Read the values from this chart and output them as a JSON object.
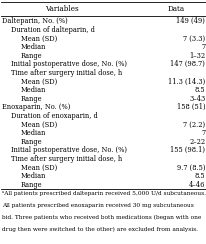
{
  "title": "Variables",
  "col2": "Data",
  "rows": [
    {
      "label": "Dalteparin, No. (%)",
      "value": "149 (49)",
      "indent": 0
    },
    {
      "label": "Duration of dalteparin, d",
      "value": "",
      "indent": 1
    },
    {
      "label": "Mean (SD)",
      "value": "7 (3.3)",
      "indent": 2
    },
    {
      "label": "Median",
      "value": "7",
      "indent": 2
    },
    {
      "label": "Range",
      "value": "1–32",
      "indent": 2
    },
    {
      "label": "Initial postoperative dose, No. (%)",
      "value": "147 (98.7)",
      "indent": 1
    },
    {
      "label": "Time after surgery initial dose, h",
      "value": "",
      "indent": 1
    },
    {
      "label": "Mean (SD)",
      "value": "11.3 (14.3)",
      "indent": 2
    },
    {
      "label": "Median",
      "value": "8.5",
      "indent": 2
    },
    {
      "label": "Range",
      "value": "3–43",
      "indent": 2
    },
    {
      "label": "Enoxaparin, No. (%)",
      "value": "158 (51)",
      "indent": 0
    },
    {
      "label": "Duration of enoxaparin, d",
      "value": "",
      "indent": 1
    },
    {
      "label": "Mean (SD)",
      "value": "7 (2.2)",
      "indent": 2
    },
    {
      "label": "Median",
      "value": "7",
      "indent": 2
    },
    {
      "label": "Range",
      "value": "2–22",
      "indent": 2
    },
    {
      "label": "Initial postoperative dose, No. (%)",
      "value": "155 (98.1)",
      "indent": 1
    },
    {
      "label": "Time after surgery initial dose, h",
      "value": "",
      "indent": 1
    },
    {
      "label": "Mean (SD)",
      "value": "9.7 (8.5)",
      "indent": 2
    },
    {
      "label": "Median",
      "value": "8.5",
      "indent": 2
    },
    {
      "label": "Range",
      "value": "4–46",
      "indent": 2
    }
  ],
  "footnote_lines": [
    "ᵃAll patients prescribed dalteparin received 5,000 U/d subcutaneous.",
    "All patients prescribed enoxaparin received 30 mg subcutaneous",
    "bid. Three patients who received both medications (began with one",
    "drug then were switched to the other) are excluded from analysis."
  ],
  "bg_color": "#ffffff",
  "font_size": 4.8,
  "footnote_font_size": 4.2,
  "header_font_size": 5.2,
  "indent_map": [
    0.008,
    0.055,
    0.1
  ]
}
